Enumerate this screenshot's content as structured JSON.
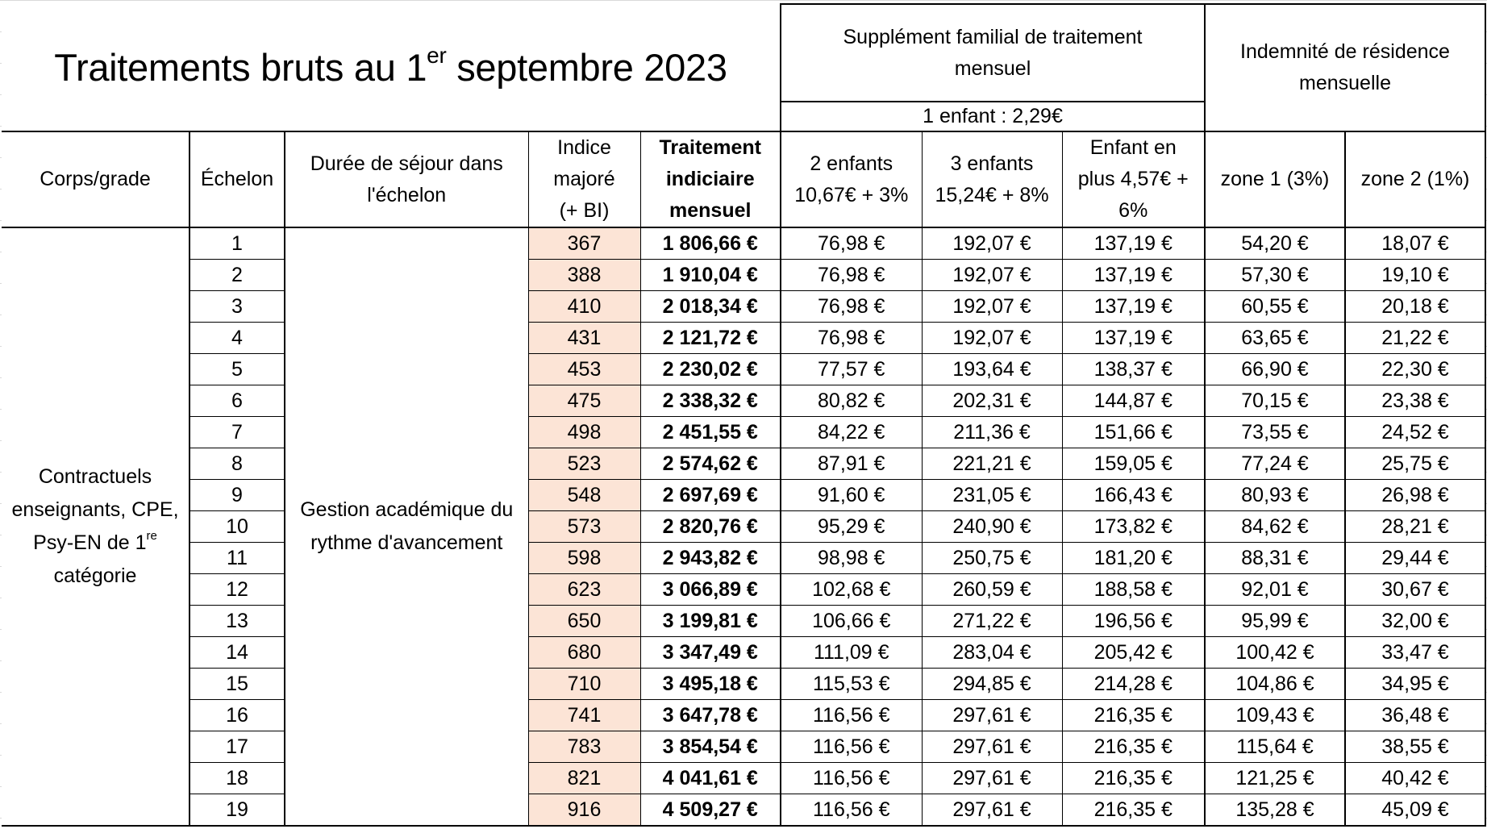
{
  "title": {
    "main": "Traitements bruts au 1",
    "sup": "er",
    "rest": " septembre 2023"
  },
  "groups": {
    "sft": {
      "label": "Supplément familial de traitement mensuel",
      "sub": "1 enfant : 2,29€"
    },
    "residence": {
      "label": "Indemnité de résidence mensuelle"
    }
  },
  "headers": {
    "corps": "Corps/grade",
    "echelon": "Échelon",
    "duree": "Durée de séjour dans l'échelon",
    "indice": "Indice majoré (+ BI)",
    "traitement": "Traitement indiciaire mensuel",
    "sft2": "2 enfants 10,67€ + 3%",
    "sft3": "3 enfants 15,24€ + 8%",
    "sftplus": "Enfant en plus 4,57€ + 6%",
    "zone1": "zone 1 (3%)",
    "zone2": "zone 2 (1%)"
  },
  "merged": {
    "corps": {
      "line1": "Contractuels",
      "line2": "enseignants, CPE,",
      "line3": "Psy-EN de 1",
      "line3_sup": "re",
      "line4": "catégorie"
    },
    "duree": {
      "line1": "Gestion académique du",
      "line2": "rythme d'avancement"
    }
  },
  "colors": {
    "indice_bg": "#fce4d6",
    "border": "#000000"
  },
  "rows": [
    {
      "echelon": "1",
      "indice": "367",
      "traitement": "1 806,66 €",
      "sft2": "76,98 €",
      "sft3": "192,07 €",
      "sftplus": "137,19 €",
      "zone1": "54,20 €",
      "zone2": "18,07 €"
    },
    {
      "echelon": "2",
      "indice": "388",
      "traitement": "1 910,04 €",
      "sft2": "76,98 €",
      "sft3": "192,07 €",
      "sftplus": "137,19 €",
      "zone1": "57,30 €",
      "zone2": "19,10 €"
    },
    {
      "echelon": "3",
      "indice": "410",
      "traitement": "2 018,34 €",
      "sft2": "76,98 €",
      "sft3": "192,07 €",
      "sftplus": "137,19 €",
      "zone1": "60,55 €",
      "zone2": "20,18 €"
    },
    {
      "echelon": "4",
      "indice": "431",
      "traitement": "2 121,72 €",
      "sft2": "76,98 €",
      "sft3": "192,07 €",
      "sftplus": "137,19 €",
      "zone1": "63,65 €",
      "zone2": "21,22 €"
    },
    {
      "echelon": "5",
      "indice": "453",
      "traitement": "2 230,02 €",
      "sft2": "77,57 €",
      "sft3": "193,64 €",
      "sftplus": "138,37 €",
      "zone1": "66,90 €",
      "zone2": "22,30 €"
    },
    {
      "echelon": "6",
      "indice": "475",
      "traitement": "2 338,32 €",
      "sft2": "80,82 €",
      "sft3": "202,31 €",
      "sftplus": "144,87 €",
      "zone1": "70,15 €",
      "zone2": "23,38 €"
    },
    {
      "echelon": "7",
      "indice": "498",
      "traitement": "2 451,55 €",
      "sft2": "84,22 €",
      "sft3": "211,36 €",
      "sftplus": "151,66 €",
      "zone1": "73,55 €",
      "zone2": "24,52 €"
    },
    {
      "echelon": "8",
      "indice": "523",
      "traitement": "2 574,62 €",
      "sft2": "87,91 €",
      "sft3": "221,21 €",
      "sftplus": "159,05 €",
      "zone1": "77,24 €",
      "zone2": "25,75 €"
    },
    {
      "echelon": "9",
      "indice": "548",
      "traitement": "2 697,69 €",
      "sft2": "91,60 €",
      "sft3": "231,05 €",
      "sftplus": "166,43 €",
      "zone1": "80,93 €",
      "zone2": "26,98 €"
    },
    {
      "echelon": "10",
      "indice": "573",
      "traitement": "2 820,76 €",
      "sft2": "95,29 €",
      "sft3": "240,90 €",
      "sftplus": "173,82 €",
      "zone1": "84,62 €",
      "zone2": "28,21 €"
    },
    {
      "echelon": "11",
      "indice": "598",
      "traitement": "2 943,82 €",
      "sft2": "98,98 €",
      "sft3": "250,75 €",
      "sftplus": "181,20 €",
      "zone1": "88,31 €",
      "zone2": "29,44 €"
    },
    {
      "echelon": "12",
      "indice": "623",
      "traitement": "3 066,89 €",
      "sft2": "102,68 €",
      "sft3": "260,59 €",
      "sftplus": "188,58 €",
      "zone1": "92,01 €",
      "zone2": "30,67 €"
    },
    {
      "echelon": "13",
      "indice": "650",
      "traitement": "3 199,81 €",
      "sft2": "106,66 €",
      "sft3": "271,22 €",
      "sftplus": "196,56 €",
      "zone1": "95,99 €",
      "zone2": "32,00 €"
    },
    {
      "echelon": "14",
      "indice": "680",
      "traitement": "3 347,49 €",
      "sft2": "111,09 €",
      "sft3": "283,04 €",
      "sftplus": "205,42 €",
      "zone1": "100,42 €",
      "zone2": "33,47 €"
    },
    {
      "echelon": "15",
      "indice": "710",
      "traitement": "3 495,18 €",
      "sft2": "115,53 €",
      "sft3": "294,85 €",
      "sftplus": "214,28 €",
      "zone1": "104,86 €",
      "zone2": "34,95 €"
    },
    {
      "echelon": "16",
      "indice": "741",
      "traitement": "3 647,78 €",
      "sft2": "116,56 €",
      "sft3": "297,61 €",
      "sftplus": "216,35 €",
      "zone1": "109,43 €",
      "zone2": "36,48 €"
    },
    {
      "echelon": "17",
      "indice": "783",
      "traitement": "3 854,54 €",
      "sft2": "116,56 €",
      "sft3": "297,61 €",
      "sftplus": "216,35 €",
      "zone1": "115,64 €",
      "zone2": "38,55 €"
    },
    {
      "echelon": "18",
      "indice": "821",
      "traitement": "4 041,61 €",
      "sft2": "116,56 €",
      "sft3": "297,61 €",
      "sftplus": "216,35 €",
      "zone1": "121,25 €",
      "zone2": "40,42 €"
    },
    {
      "echelon": "19",
      "indice": "916",
      "traitement": "4 509,27 €",
      "sft2": "116,56 €",
      "sft3": "297,61 €",
      "sftplus": "216,35 €",
      "zone1": "135,28 €",
      "zone2": "45,09 €"
    }
  ]
}
